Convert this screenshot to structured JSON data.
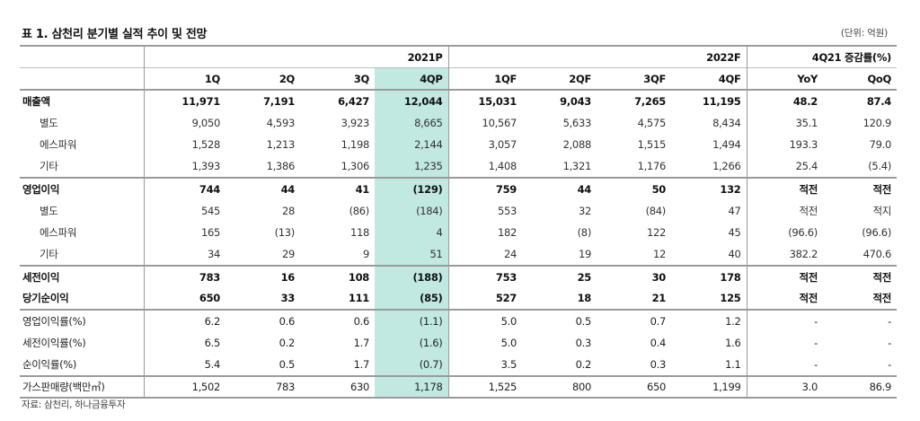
{
  "title": "표 1. 삼천리 분기별 실적 추이 및 전망",
  "unit": "(단위: 억원)",
  "source": "자료: 삼천리, 하나금융투자",
  "highlight_color": "#c1e9e2",
  "header": {
    "group_2021": "2021P",
    "group_2022": "2022F",
    "group_change": "4Q21 증감률(%)",
    "columns": [
      "1Q",
      "2Q",
      "3Q",
      "4QP",
      "1QF",
      "2QF",
      "3QF",
      "4QF",
      "YoY",
      "QoQ"
    ]
  },
  "rows": [
    {
      "label": "매출액",
      "values": [
        "11,971",
        "7,191",
        "6,427",
        "12,044",
        "15,031",
        "9,043",
        "7,265",
        "11,195",
        "48.2",
        "87.4"
      ]
    },
    {
      "label": "별도",
      "values": [
        "9,050",
        "4,593",
        "3,923",
        "8,665",
        "10,567",
        "5,633",
        "4,575",
        "8,434",
        "35.1",
        "120.9"
      ]
    },
    {
      "label": "에스파워",
      "values": [
        "1,528",
        "1,213",
        "1,198",
        "2,144",
        "3,057",
        "2,088",
        "1,515",
        "1,494",
        "193.3",
        "79.0"
      ]
    },
    {
      "label": "기타",
      "values": [
        "1,393",
        "1,386",
        "1,306",
        "1,235",
        "1,408",
        "1,321",
        "1,176",
        "1,266",
        "25.4",
        "(5.4)"
      ]
    },
    {
      "label": "영업이익",
      "values": [
        "744",
        "44",
        "41",
        "(129)",
        "759",
        "44",
        "50",
        "132",
        "적전",
        "적전"
      ]
    },
    {
      "label": "별도",
      "values": [
        "545",
        "28",
        "(86)",
        "(184)",
        "553",
        "32",
        "(84)",
        "47",
        "적전",
        "적지"
      ]
    },
    {
      "label": "에스파워",
      "values": [
        "165",
        "(13)",
        "118",
        "4",
        "182",
        "(8)",
        "122",
        "45",
        "(96.6)",
        "(96.6)"
      ]
    },
    {
      "label": "기타",
      "values": [
        "34",
        "29",
        "9",
        "51",
        "24",
        "19",
        "12",
        "40",
        "382.2",
        "470.6"
      ]
    },
    {
      "label": "세전이익",
      "values": [
        "783",
        "16",
        "108",
        "(188)",
        "753",
        "25",
        "30",
        "178",
        "적전",
        "적전"
      ]
    },
    {
      "label": "당기순이익",
      "values": [
        "650",
        "33",
        "111",
        "(85)",
        "527",
        "18",
        "21",
        "125",
        "적전",
        "적전"
      ]
    },
    {
      "label": "영업이익률(%)",
      "values": [
        "6.2",
        "0.6",
        "0.6",
        "(1.1)",
        "5.0",
        "0.5",
        "0.7",
        "1.2",
        "-",
        "-"
      ]
    },
    {
      "label": "세전이익률(%)",
      "values": [
        "6.5",
        "0.2",
        "1.7",
        "(1.6)",
        "5.0",
        "0.3",
        "0.4",
        "1.6",
        "-",
        "-"
      ]
    },
    {
      "label": "순이익률(%)",
      "values": [
        "5.4",
        "0.5",
        "1.7",
        "(0.7)",
        "3.5",
        "0.2",
        "0.3",
        "1.1",
        "-",
        "-"
      ]
    },
    {
      "label": "가스판매량(백만㎥)",
      "values": [
        "1,502",
        "783",
        "630",
        "1,178",
        "1,525",
        "800",
        "650",
        "1,199",
        "3.0",
        "86.9"
      ]
    }
  ]
}
